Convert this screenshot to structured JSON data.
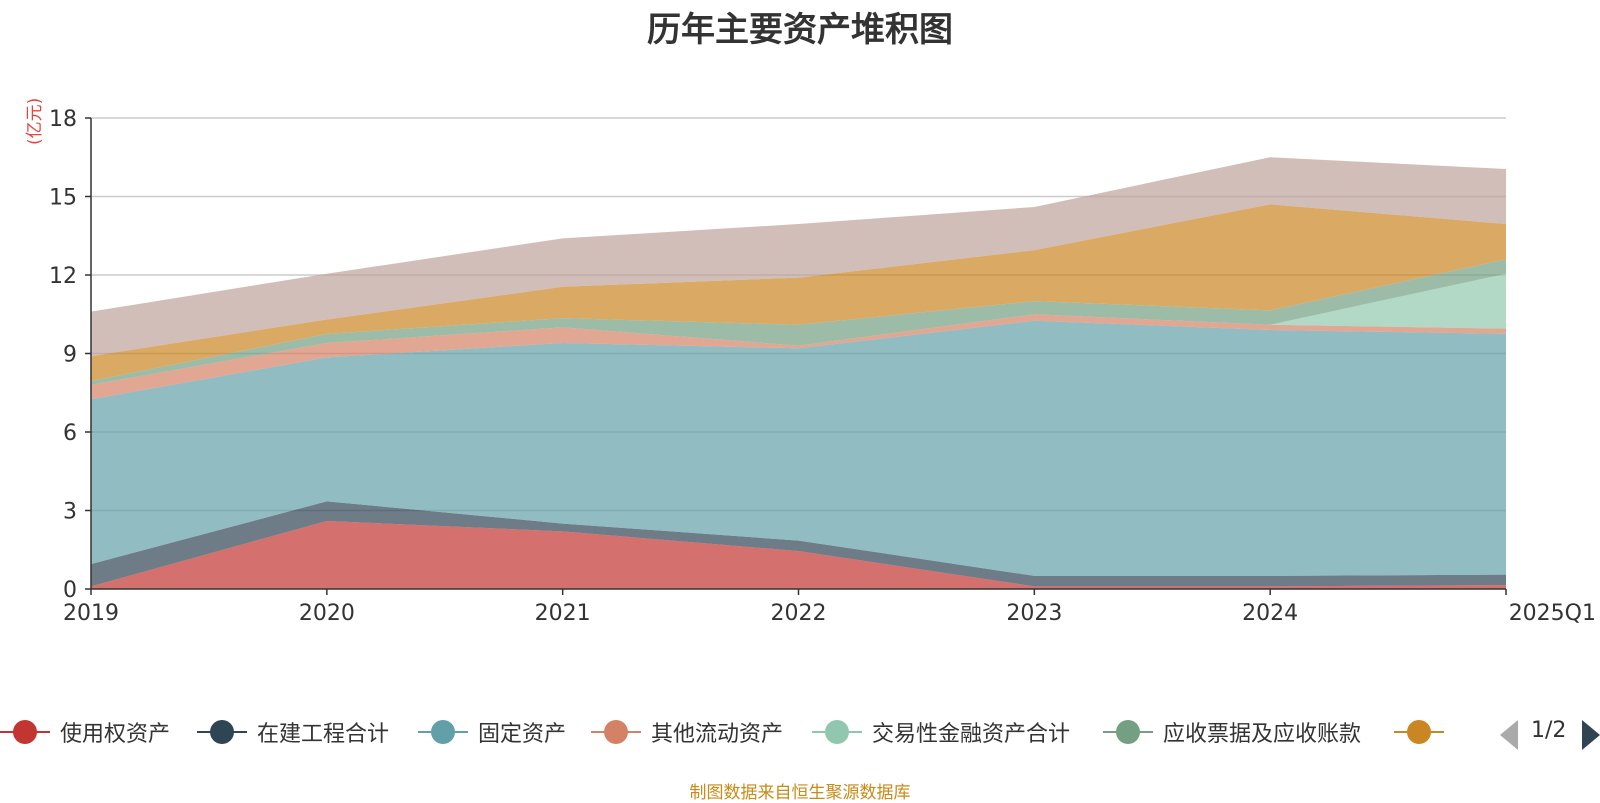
{
  "chart_data": {
    "type": "area",
    "stacked": true,
    "title": "历年主要资产堆积图",
    "ylabel": "(亿元)",
    "xlabel": "",
    "categories": [
      "2019",
      "2020",
      "2021",
      "2022",
      "2023",
      "2024",
      "2025Q1"
    ],
    "ylim": [
      0,
      18
    ],
    "yticks": [
      0,
      3,
      6,
      9,
      12,
      15,
      18
    ],
    "grid": true,
    "series": [
      {
        "name": "使用权资产",
        "color": "#c23531",
        "values": [
          0.1,
          2.6,
          2.2,
          1.45,
          0.1,
          0.1,
          0.15
        ]
      },
      {
        "name": "在建工程合计",
        "color": "#2f4554",
        "values": [
          0.85,
          0.75,
          0.3,
          0.4,
          0.4,
          0.4,
          0.4
        ]
      },
      {
        "name": "固定资产",
        "color": "#61a0a8",
        "values": [
          6.3,
          5.5,
          6.9,
          7.35,
          9.75,
          9.4,
          9.2
        ]
      },
      {
        "name": "其他流动资产",
        "color": "#d48265",
        "values": [
          0.55,
          0.55,
          0.6,
          0.1,
          0.25,
          0.2,
          0.2
        ]
      },
      {
        "name": "交易性金融资产合计",
        "color": "#91c7ae",
        "values": [
          0.0,
          0.0,
          0.0,
          0.0,
          0.0,
          0.0,
          2.1
        ]
      },
      {
        "name": "应收票据及应收账款",
        "color": "#749f83",
        "values": [
          0.15,
          0.35,
          0.35,
          0.8,
          0.5,
          0.55,
          0.55
        ]
      },
      {
        "name": "",
        "color": "#ca8622",
        "values": [
          0.95,
          0.55,
          1.2,
          1.8,
          1.95,
          4.05,
          1.35
        ]
      },
      {
        "name": "",
        "color": "#bda29a",
        "values": [
          1.7,
          1.75,
          1.85,
          2.05,
          1.65,
          1.8,
          2.1
        ]
      }
    ]
  },
  "legend": {
    "items": [
      {
        "label": "使用权资产",
        "color": "#c23531"
      },
      {
        "label": "在建工程合计",
        "color": "#2f4554"
      },
      {
        "label": "固定资产",
        "color": "#61a0a8"
      },
      {
        "label": "其他流动资产",
        "color": "#d48265"
      },
      {
        "label": "交易性金融资产合计",
        "color": "#91c7ae"
      },
      {
        "label": "应收票据及应收账款",
        "color": "#749f83"
      },
      {
        "label": "",
        "color": "#ca8622"
      }
    ],
    "page_indicator": "1/2"
  },
  "footer": {
    "source": "制图数据来自恒生聚源数据库"
  }
}
